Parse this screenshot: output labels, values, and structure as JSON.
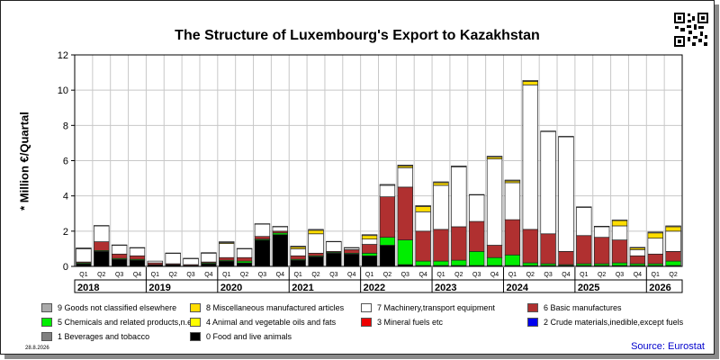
{
  "title": "The Structure of Luxembourg's Export to Kazakhstan",
  "footer": {
    "date": "28.8.2026",
    "source": "Source: Eurostat"
  },
  "chart_data": {
    "type": "bar",
    "stacked": true,
    "title": "The Structure of Luxembourg's Export to Kazakhstan",
    "ylabel": "* Million €/Quartal",
    "xlabel": "",
    "ylim": [
      0,
      12
    ],
    "yticks": [
      0,
      2,
      4,
      6,
      8,
      10,
      12
    ],
    "grid": true,
    "legend_position": "bottom",
    "categories": [
      "Q1",
      "Q2",
      "Q3",
      "Q4",
      "Q1",
      "Q2",
      "Q3",
      "Q4",
      "Q1",
      "Q2",
      "Q3",
      "Q4",
      "Q1",
      "Q2",
      "Q3",
      "Q4",
      "Q1",
      "Q2",
      "Q3",
      "Q4",
      "Q1",
      "Q2",
      "Q3",
      "Q4",
      "Q1",
      "Q2",
      "Q3",
      "Q4",
      "Q1",
      "Q2",
      "Q3",
      "Q4",
      "Q1",
      "Q2"
    ],
    "years": [
      {
        "label": "2018",
        "start": 0,
        "count": 4
      },
      {
        "label": "2019",
        "start": 4,
        "count": 4
      },
      {
        "label": "2020",
        "start": 8,
        "count": 4
      },
      {
        "label": "2021",
        "start": 12,
        "count": 4
      },
      {
        "label": "2022",
        "start": 16,
        "count": 4
      },
      {
        "label": "2023",
        "start": 20,
        "count": 4
      },
      {
        "label": "2024",
        "start": 24,
        "count": 4
      },
      {
        "label": "2025",
        "start": 28,
        "count": 4
      },
      {
        "label": "2026",
        "start": 32,
        "count": 2
      }
    ],
    "series": [
      {
        "name": "0 Food and live animals",
        "color": "#000000",
        "values": [
          0.15,
          0.85,
          0.4,
          0.35,
          0.1,
          0.1,
          0.05,
          0.15,
          0.3,
          0.2,
          1.5,
          1.8,
          0.35,
          0.55,
          0.75,
          0.7,
          0.6,
          1.2,
          0.1,
          0.05,
          0.05,
          0.05,
          0.05,
          0.05,
          0.05,
          0.05,
          0.05,
          0.05,
          0.05,
          0.05,
          0.05,
          0.05,
          0.05,
          0.05
        ]
      },
      {
        "name": "5 Chemicals and related products,n.e.s.",
        "color": "#00ee00",
        "values": [
          0.05,
          0.05,
          0.05,
          0.05,
          0,
          0,
          0,
          0.05,
          0.05,
          0.1,
          0.05,
          0.1,
          0.05,
          0.05,
          0.05,
          0.05,
          0.15,
          0.45,
          1.4,
          0.25,
          0.25,
          0.3,
          0.8,
          0.45,
          0.6,
          0.15,
          0.1,
          0.05,
          0.1,
          0.1,
          0.15,
          0.1,
          0.1,
          0.25
        ]
      },
      {
        "name": "6 Basic manufactures",
        "color": "#b03030",
        "values": [
          0.05,
          0.5,
          0.25,
          0.2,
          0.1,
          0.05,
          0.05,
          0.05,
          0.15,
          0.2,
          0.15,
          0.1,
          0.2,
          0.15,
          0.05,
          0.2,
          0.5,
          2.3,
          3.0,
          1.7,
          1.8,
          1.9,
          1.7,
          0.7,
          2.0,
          1.9,
          1.7,
          0.75,
          1.6,
          1.5,
          1.3,
          0.45,
          0.55,
          0.55
        ]
      },
      {
        "name": "7 Machinery,transport equipment",
        "color": "#ffffff",
        "values": [
          0.75,
          0.9,
          0.5,
          0.45,
          0.1,
          0.6,
          0.35,
          0.5,
          0.8,
          0.5,
          0.7,
          0.25,
          0.4,
          1.1,
          0.55,
          0.1,
          0.3,
          0.65,
          1.1,
          1.1,
          2.5,
          3.4,
          1.5,
          4.9,
          2.1,
          8.2,
          5.8,
          6.5,
          1.6,
          0.6,
          0.8,
          0.35,
          0.9,
          1.15
        ]
      },
      {
        "name": "8 Miscellaneous manufactured articles",
        "color": "#ffdd00",
        "values": [
          0,
          0,
          0,
          0,
          0,
          0,
          0,
          0,
          0.05,
          0,
          0,
          0,
          0.1,
          0.2,
          0,
          0,
          0.2,
          0,
          0.1,
          0.3,
          0.15,
          0,
          0,
          0.1,
          0.1,
          0.2,
          0,
          0,
          0,
          0,
          0.3,
          0.1,
          0.3,
          0.25
        ]
      },
      {
        "name": "9 Goods not classified elsewhere",
        "color": "#aaaaaa",
        "values": [
          0.05,
          0.02,
          0.02,
          0.02,
          0,
          0.01,
          0.01,
          0.03,
          0.05,
          0.02,
          0.02,
          0.02,
          0.05,
          0.05,
          0.02,
          0.02,
          0.05,
          0.05,
          0.05,
          0.05,
          0.05,
          0.05,
          0.03,
          0.05,
          0.05,
          0.05,
          0.03,
          0.03,
          0.03,
          0.03,
          0.03,
          0.03,
          0.05,
          0.05
        ]
      }
    ],
    "legend": [
      {
        "name": "9 Goods not classified elsewhere",
        "color": "#aaaaaa"
      },
      {
        "name": "8 Miscellaneous manufactured articles",
        "color": "#ffdd00"
      },
      {
        "name": "7 Machinery,transport equipment",
        "color": "#ffffff"
      },
      {
        "name": "6 Basic manufactures",
        "color": "#b03030"
      },
      {
        "name": "5 Chemicals and related products,n.e.s.",
        "color": "#00ee00"
      },
      {
        "name": "4 Animal and vegetable oils and fats",
        "color": "#ffff00"
      },
      {
        "name": "3 Mineral fuels etc",
        "color": "#ee0000"
      },
      {
        "name": "2 Crude materials,inedible,except fuels",
        "color": "#0000ee"
      },
      {
        "name": "1 Beverages and tobacco",
        "color": "#808080"
      },
      {
        "name": "0 Food and live animals",
        "color": "#000000"
      }
    ]
  }
}
